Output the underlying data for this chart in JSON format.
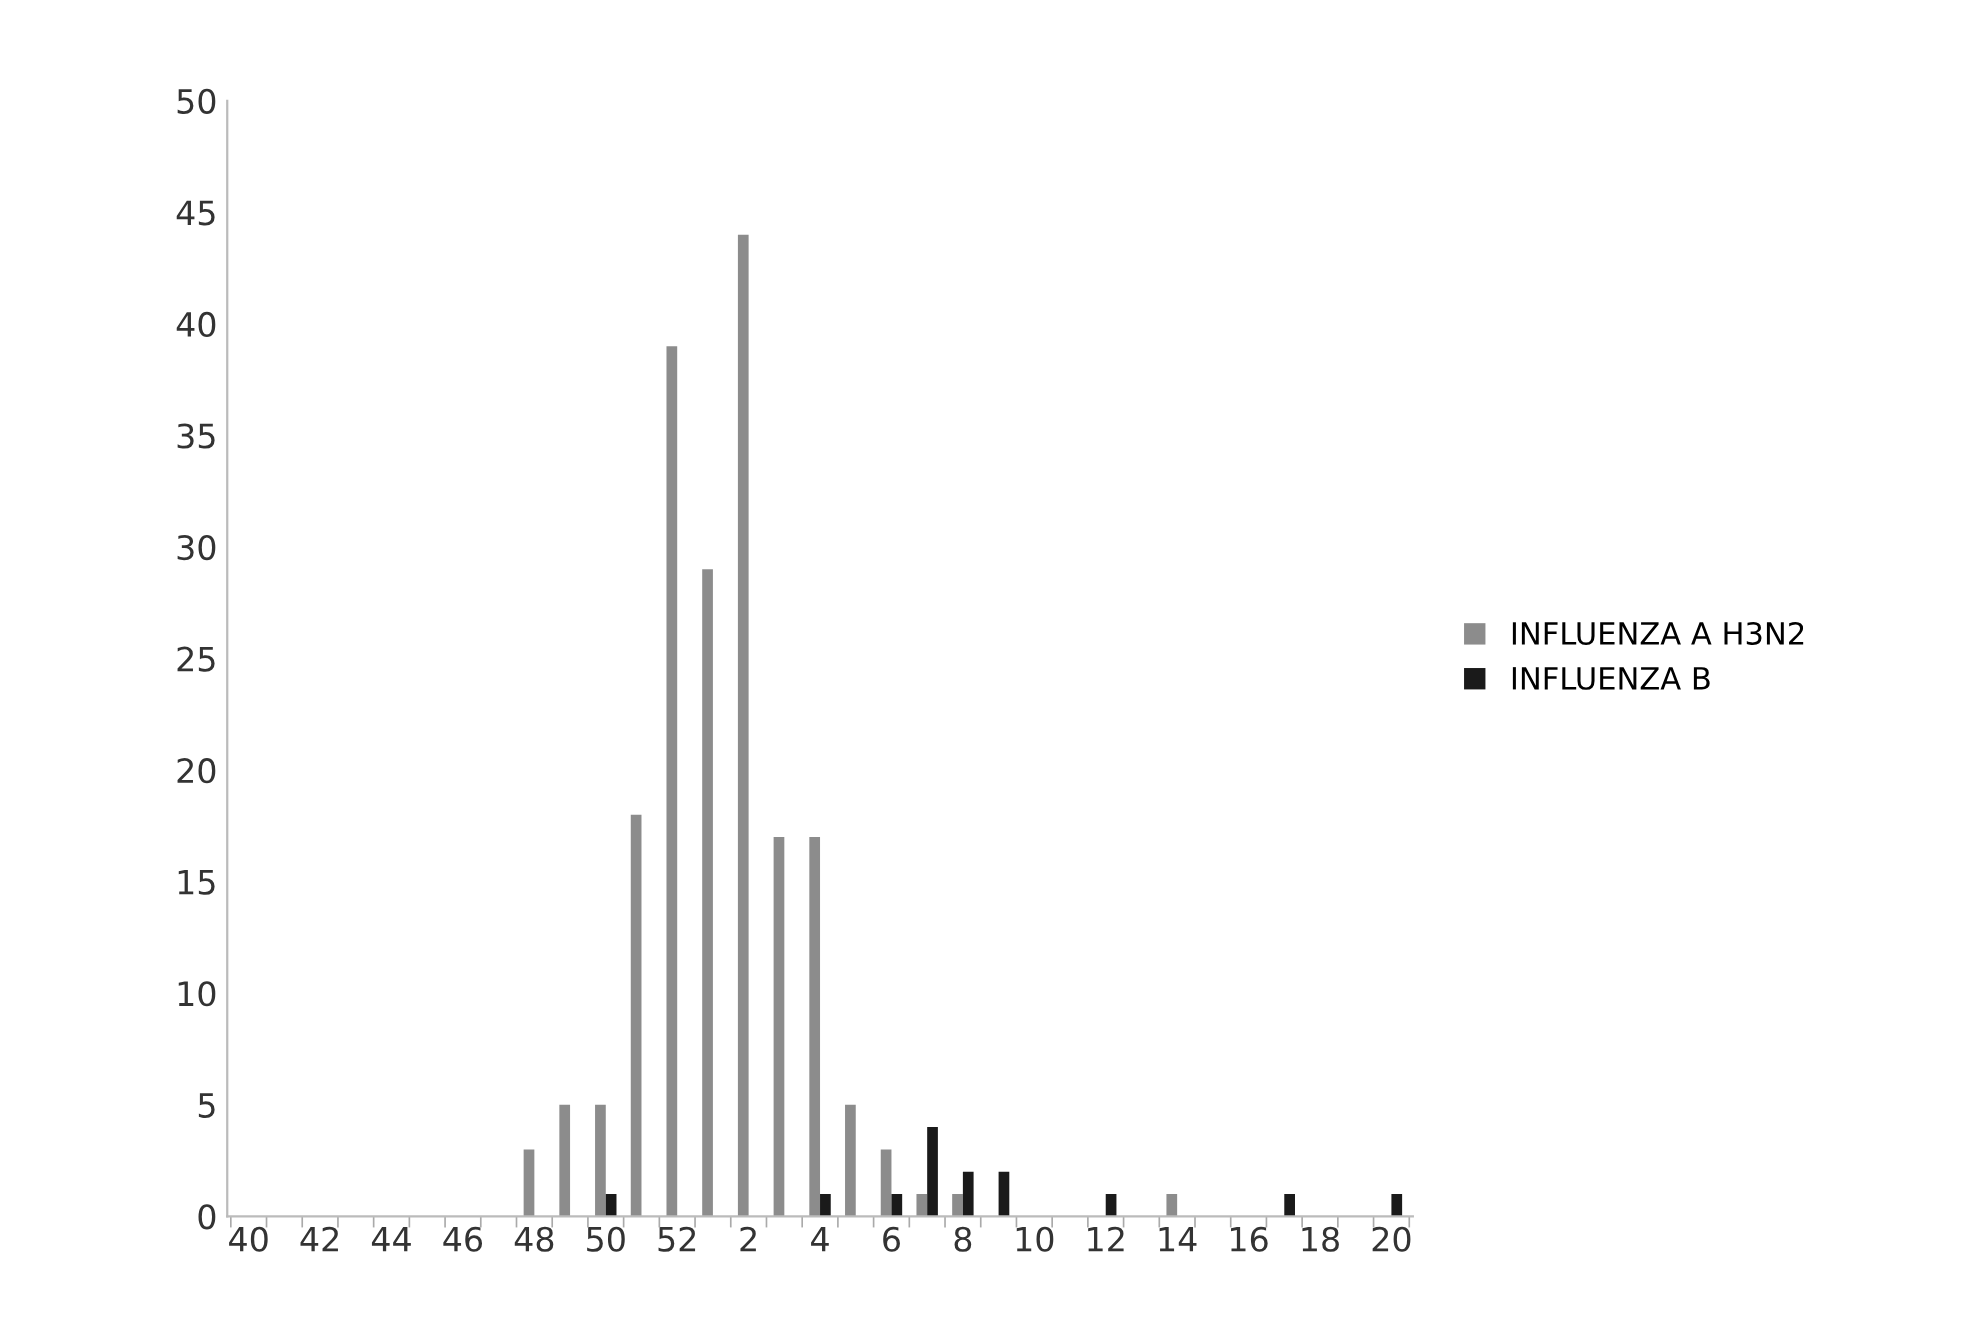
{
  "chart_data": {
    "type": "bar",
    "categories": [
      "40",
      null,
      "42",
      null,
      "44",
      null,
      "46",
      null,
      "48",
      null,
      "50",
      null,
      "52",
      null,
      "2",
      null,
      "4",
      null,
      "6",
      null,
      "8",
      null,
      "10",
      null,
      "12",
      null,
      "14",
      null,
      "16",
      null,
      "18",
      null,
      "20"
    ],
    "series": [
      {
        "name": "INFLUENZA A H3N2",
        "color": "#8c8c8c",
        "values": [
          0,
          0,
          0,
          0,
          0,
          0,
          0,
          0,
          3,
          5,
          5,
          18,
          39,
          29,
          44,
          17,
          17,
          5,
          3,
          1,
          1,
          0,
          0,
          0,
          0,
          0,
          1,
          0,
          0,
          0,
          0,
          0,
          0
        ]
      },
      {
        "name": "INFLUENZA B",
        "color": "#1a1a1a",
        "values": [
          0,
          0,
          0,
          0,
          0,
          0,
          0,
          0,
          0,
          0,
          1,
          0,
          0,
          0,
          0,
          0,
          1,
          0,
          1,
          4,
          2,
          2,
          0,
          0,
          1,
          0,
          0,
          0,
          0,
          1,
          0,
          0,
          1
        ]
      }
    ],
    "ylim": [
      0,
      50
    ],
    "yticks": [
      0,
      5,
      10,
      15,
      20,
      25,
      30,
      35,
      40,
      45,
      50
    ],
    "grid": false,
    "legend": "right"
  }
}
